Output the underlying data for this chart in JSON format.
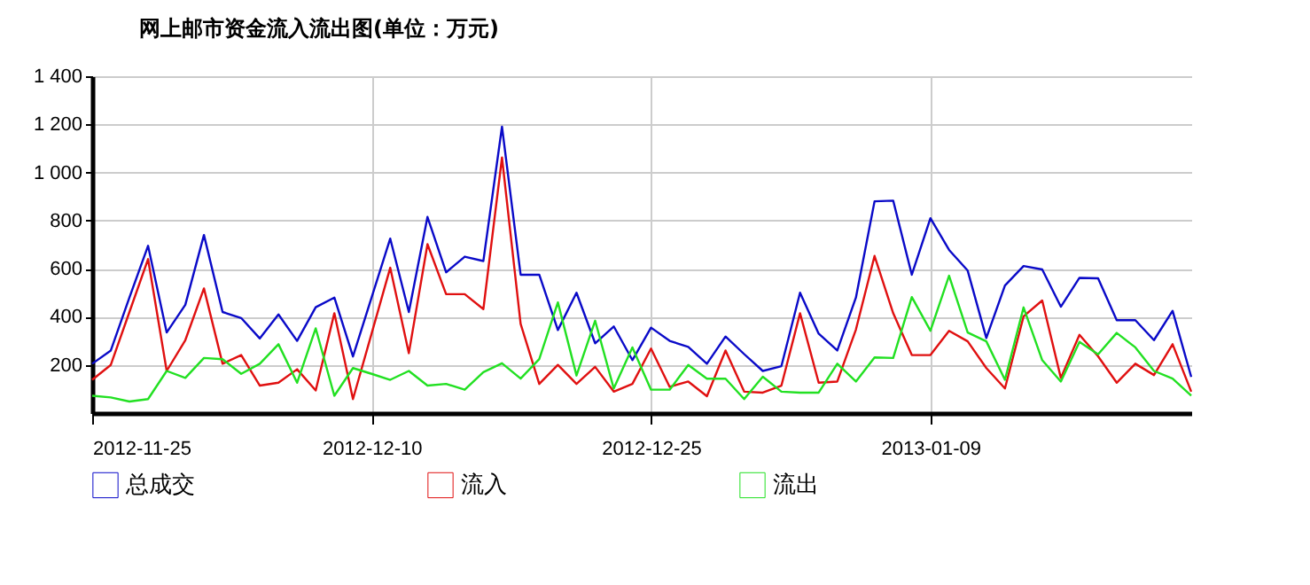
{
  "chart_data": {
    "type": "line",
    "title": "网上邮市资金流入流出图(单位：万元)",
    "x": [
      "2012-11-25",
      "2012-11-26",
      "2012-11-27",
      "2012-11-28",
      "2012-11-29",
      "2012-11-30",
      "2012-12-01",
      "2012-12-02",
      "2012-12-03",
      "2012-12-04",
      "2012-12-05",
      "2012-12-06",
      "2012-12-07",
      "2012-12-08",
      "2012-12-09",
      "2012-12-10",
      "2012-12-11",
      "2012-12-12",
      "2012-12-13",
      "2012-12-14",
      "2012-12-15",
      "2012-12-16",
      "2012-12-17",
      "2012-12-18",
      "2012-12-19",
      "2012-12-20",
      "2012-12-21",
      "2012-12-22",
      "2012-12-23",
      "2012-12-24",
      "2012-12-25",
      "2012-12-26",
      "2012-12-27",
      "2012-12-28",
      "2012-12-29",
      "2012-12-30",
      "2012-12-31",
      "2013-01-01",
      "2013-01-02",
      "2013-01-03",
      "2013-01-04",
      "2013-01-05",
      "2013-01-06",
      "2013-01-07",
      "2013-01-08",
      "2013-01-09",
      "2013-01-10",
      "2013-01-11",
      "2013-01-12",
      "2013-01-13",
      "2013-01-14",
      "2013-01-15",
      "2013-01-16",
      "2013-01-17",
      "2013-01-18",
      "2013-01-19",
      "2013-01-20",
      "2013-01-21",
      "2013-01-22",
      "2013-01-23"
    ],
    "series": [
      {
        "name": "总成交",
        "color": "#0a0ac8",
        "values": [
          205,
          260,
          480,
          695,
          335,
          450,
          740,
          420,
          395,
          310,
          410,
          300,
          440,
          480,
          235,
          480,
          725,
          420,
          815,
          585,
          650,
          632,
          1190,
          575,
          575,
          345,
          500,
          290,
          360,
          220,
          355,
          300,
          275,
          205,
          318,
          245,
          175,
          195,
          500,
          330,
          260,
          480,
          880,
          883,
          575,
          810,
          678,
          592,
          312,
          530,
          611,
          597,
          442,
          562,
          560,
          386,
          386,
          303,
          425,
          150
        ]
      },
      {
        "name": "流入",
        "color": "#e01010",
        "values": [
          138,
          200,
          420,
          640,
          175,
          303,
          518,
          205,
          241,
          114,
          126,
          182,
          94,
          415,
          58,
          330,
          604,
          249,
          702,
          494,
          494,
          432,
          1062,
          371,
          121,
          200,
          121,
          192,
          89,
          121,
          268,
          109,
          131,
          70,
          260,
          89,
          85,
          114,
          415,
          126,
          131,
          347,
          653,
          415,
          241,
          241,
          342,
          298,
          187,
          102,
          402,
          468,
          146,
          325,
          236,
          126,
          205,
          158,
          286,
          89
        ]
      },
      {
        "name": "流出",
        "color": "#22e022",
        "values": [
          72,
          65,
          48,
          58,
          175,
          146,
          229,
          224,
          163,
          205,
          286,
          126,
          352,
          72,
          187,
          163,
          138,
          175,
          114,
          121,
          97,
          170,
          207,
          143,
          224,
          460,
          156,
          384,
          102,
          273,
          97,
          97,
          200,
          143,
          143,
          58,
          151,
          89,
          85,
          85,
          205,
          131,
          231,
          229,
          482,
          342,
          571,
          335,
          298,
          138,
          439,
          220,
          131,
          296,
          244,
          333,
          273,
          175,
          143,
          72
        ]
      }
    ],
    "xlim": [
      "2012-11-25",
      "2013-01-23"
    ],
    "xticks": [
      "2012-11-25",
      "2012-12-10",
      "2012-12-25",
      "2013-01-09"
    ],
    "ylim": [
      0,
      1400
    ],
    "yticks": [
      {
        "value": 200,
        "label": "200"
      },
      {
        "value": 400,
        "label": "400"
      },
      {
        "value": 600,
        "label": "600"
      },
      {
        "value": 800,
        "label": "800"
      },
      {
        "value": 1000,
        "label": "1 000"
      },
      {
        "value": 1200,
        "label": "1 200"
      },
      {
        "value": 1400,
        "label": "1 400"
      }
    ],
    "grid": true,
    "legend": "bottom"
  }
}
